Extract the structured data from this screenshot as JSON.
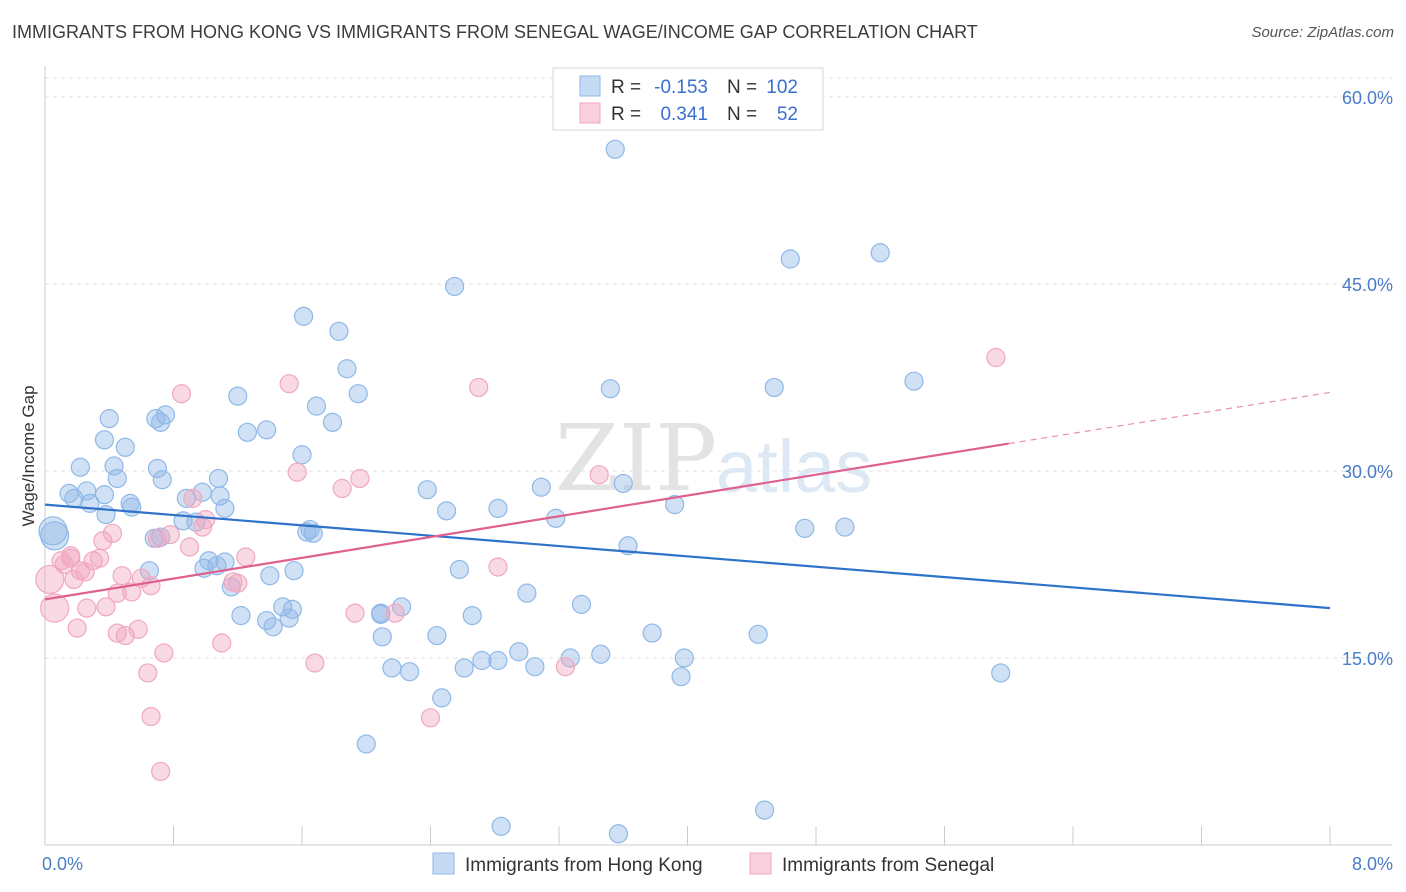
{
  "header": {
    "title": "IMMIGRANTS FROM HONG KONG VS IMMIGRANTS FROM SENEGAL WAGE/INCOME GAP CORRELATION CHART",
    "source": "Source: ZipAtlas.com"
  },
  "watermark": {
    "text_zip": "ZIP",
    "text_atlas": "atlas"
  },
  "chart_data": {
    "type": "scatter",
    "title": "IMMIGRANTS FROM HONG KONG VS IMMIGRANTS FROM SENEGAL WAGE/INCOME GAP CORRELATION CHART",
    "ylabel": "Wage/Income Gap",
    "xlabel": "",
    "xlim": [
      0,
      8
    ],
    "ylim": [
      0,
      62
    ],
    "x_tick_labels": [
      "0.0%",
      "8.0%"
    ],
    "y_ticks": [
      15,
      30,
      45,
      60
    ],
    "y_tick_labels": [
      "15.0%",
      "30.0%",
      "45.0%",
      "60.0%"
    ],
    "grid": true,
    "legend_position": "top-center",
    "stats": [
      {
        "r_label": "R =",
        "r_value": "-0.153",
        "n_label": "N =",
        "n_value": "102"
      },
      {
        "r_label": "R =",
        "r_value": "0.341",
        "n_label": "N =",
        "n_value": "52"
      }
    ],
    "series": [
      {
        "name": "Immigrants from Hong Kong",
        "color": "#8fb8e8",
        "line_color": "#2f72c9",
        "trend": {
          "x0": 0.0,
          "y0": 27.3,
          "x1": 8.0,
          "y1": 19.0
        },
        "points": [
          [
            0.05,
            25.2
          ],
          [
            0.06,
            24.8
          ],
          [
            0.15,
            28.2
          ],
          [
            0.18,
            27.8
          ],
          [
            0.22,
            30.3
          ],
          [
            0.26,
            28.4
          ],
          [
            0.28,
            27.4
          ],
          [
            0.37,
            28.1
          ],
          [
            0.38,
            26.5
          ],
          [
            0.4,
            34.2
          ],
          [
            0.37,
            32.5
          ],
          [
            0.43,
            30.4
          ],
          [
            0.45,
            29.4
          ],
          [
            0.5,
            31.9
          ],
          [
            0.53,
            27.4
          ],
          [
            0.54,
            27.1
          ],
          [
            0.7,
            30.2
          ],
          [
            0.73,
            29.3
          ],
          [
            0.68,
            24.6
          ],
          [
            0.72,
            24.7
          ],
          [
            0.75,
            34.5
          ],
          [
            0.69,
            34.2
          ],
          [
            0.72,
            33.9
          ],
          [
            0.86,
            26.0
          ],
          [
            0.88,
            27.8
          ],
          [
            0.98,
            28.3
          ],
          [
            0.94,
            25.9
          ],
          [
            0.99,
            22.2
          ],
          [
            1.02,
            22.8
          ],
          [
            1.07,
            22.4
          ],
          [
            1.12,
            27.0
          ],
          [
            1.12,
            22.7
          ],
          [
            1.08,
            29.4
          ],
          [
            1.16,
            20.7
          ],
          [
            1.22,
            18.4
          ],
          [
            1.26,
            33.1
          ],
          [
            1.38,
            18.0
          ],
          [
            1.38,
            33.3
          ],
          [
            1.48,
            19.1
          ],
          [
            1.54,
            18.9
          ],
          [
            1.42,
            17.5
          ],
          [
            1.4,
            21.6
          ],
          [
            1.55,
            22.0
          ],
          [
            1.65,
            25.3
          ],
          [
            1.63,
            25.1
          ],
          [
            1.67,
            25.0
          ],
          [
            1.6,
            31.3
          ],
          [
            1.69,
            35.2
          ],
          [
            1.79,
            33.9
          ],
          [
            1.61,
            42.4
          ],
          [
            1.83,
            41.2
          ],
          [
            1.95,
            36.2
          ],
          [
            1.88,
            38.2
          ],
          [
            2.09,
            18.6
          ],
          [
            2.09,
            18.5
          ],
          [
            2.1,
            16.7
          ],
          [
            2.16,
            14.2
          ],
          [
            2.22,
            19.1
          ],
          [
            2.27,
            13.9
          ],
          [
            2.44,
            16.8
          ],
          [
            2.38,
            28.5
          ],
          [
            2.47,
            11.8
          ],
          [
            2.55,
            44.8
          ],
          [
            2.5,
            26.8
          ],
          [
            2.58,
            22.1
          ],
          [
            2.61,
            14.2
          ],
          [
            2.72,
            14.8
          ],
          [
            2.66,
            18.4
          ],
          [
            2.82,
            14.8
          ],
          [
            2.82,
            27.0
          ],
          [
            2.95,
            15.5
          ],
          [
            3.05,
            14.3
          ],
          [
            3.0,
            20.2
          ],
          [
            3.09,
            28.7
          ],
          [
            3.18,
            26.2
          ],
          [
            3.27,
            15.0
          ],
          [
            3.34,
            19.3
          ],
          [
            3.46,
            15.3
          ],
          [
            3.52,
            36.6
          ],
          [
            3.6,
            29.0
          ],
          [
            3.63,
            24.0
          ],
          [
            3.78,
            17.0
          ],
          [
            3.92,
            27.3
          ],
          [
            3.96,
            13.5
          ],
          [
            3.98,
            15.0
          ],
          [
            4.44,
            16.9
          ],
          [
            4.54,
            36.7
          ],
          [
            4.64,
            47.0
          ],
          [
            4.73,
            25.4
          ],
          [
            4.98,
            25.5
          ],
          [
            5.2,
            47.5
          ],
          [
            5.41,
            37.2
          ],
          [
            5.95,
            13.8
          ],
          [
            3.55,
            55.8
          ],
          [
            2.0,
            8.1
          ],
          [
            2.84,
            1.5
          ],
          [
            4.48,
            2.8
          ],
          [
            3.57,
            0.9
          ],
          [
            0.65,
            22.0
          ],
          [
            1.2,
            36.0
          ],
          [
            1.09,
            28.0
          ],
          [
            1.52,
            18.2
          ]
        ]
      },
      {
        "name": "Immigrants from Senegal",
        "color": "#f1a7bf",
        "line_color": "#e0608f",
        "trend": {
          "x0": 0.0,
          "y0": 19.7,
          "x1": 6.0,
          "y1": 32.2
        },
        "trend_dashed": {
          "x0": 6.0,
          "y0": 32.2,
          "x1": 8.0,
          "y1": 36.3
        },
        "points": [
          [
            0.03,
            21.3
          ],
          [
            0.06,
            19.0
          ],
          [
            0.1,
            22.8
          ],
          [
            0.12,
            22.5
          ],
          [
            0.16,
            23.2
          ],
          [
            0.18,
            21.3
          ],
          [
            0.2,
            17.4
          ],
          [
            0.22,
            22.0
          ],
          [
            0.26,
            19.0
          ],
          [
            0.3,
            22.8
          ],
          [
            0.34,
            23.0
          ],
          [
            0.38,
            19.1
          ],
          [
            0.36,
            24.4
          ],
          [
            0.42,
            25.0
          ],
          [
            0.45,
            17.0
          ],
          [
            0.48,
            21.6
          ],
          [
            0.5,
            16.8
          ],
          [
            0.54,
            20.3
          ],
          [
            0.58,
            17.3
          ],
          [
            0.6,
            21.4
          ],
          [
            0.64,
            13.8
          ],
          [
            0.66,
            20.8
          ],
          [
            0.7,
            24.6
          ],
          [
            0.74,
            15.4
          ],
          [
            0.78,
            24.9
          ],
          [
            0.85,
            36.2
          ],
          [
            0.9,
            23.9
          ],
          [
            0.92,
            27.8
          ],
          [
            0.98,
            25.5
          ],
          [
            1.0,
            26.1
          ],
          [
            1.1,
            16.2
          ],
          [
            1.17,
            21.1
          ],
          [
            1.2,
            21.0
          ],
          [
            1.25,
            23.1
          ],
          [
            1.52,
            37.0
          ],
          [
            1.57,
            29.9
          ],
          [
            1.68,
            14.6
          ],
          [
            1.85,
            28.6
          ],
          [
            1.93,
            18.6
          ],
          [
            1.96,
            29.4
          ],
          [
            2.18,
            18.6
          ],
          [
            2.4,
            10.2
          ],
          [
            2.7,
            36.7
          ],
          [
            2.82,
            22.3
          ],
          [
            3.24,
            14.3
          ],
          [
            3.45,
            29.7
          ],
          [
            5.92,
            39.1
          ],
          [
            0.66,
            10.3
          ],
          [
            0.72,
            5.9
          ],
          [
            0.16,
            23.0
          ],
          [
            0.25,
            21.9
          ],
          [
            0.45,
            20.2
          ]
        ]
      }
    ]
  }
}
